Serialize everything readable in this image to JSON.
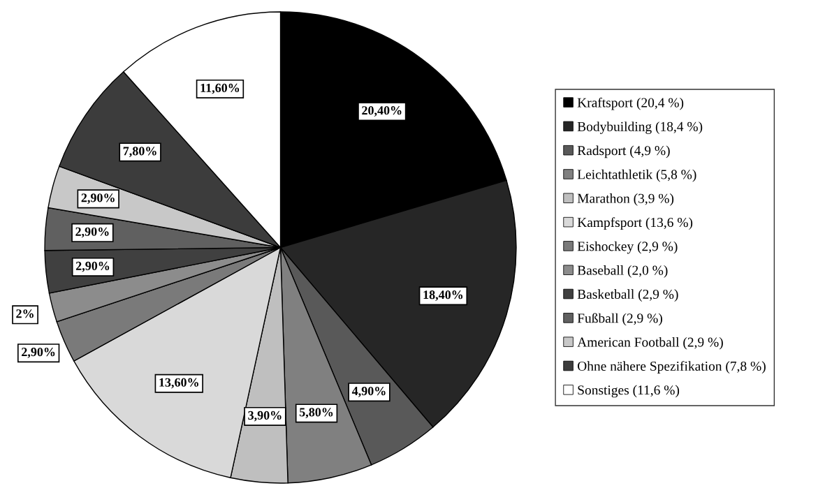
{
  "chart_data": {
    "type": "pie",
    "categories": [
      "Kraftsport (20,4 %)",
      "Bodybuilding (18,4 %)",
      "Radsport (4,9 %)",
      "Leichtathletik (5,8 %)",
      "Marathon (3,9 %)",
      "Kampfsport (13,6 %)",
      "Eishockey (2,9 %)",
      "Baseball (2,0 %)",
      "Basketball (2,9 %)",
      "Fußball (2,9 %)",
      "American Football (2,9 %)",
      "Ohne nähere Spezifikation (7,8 %)",
      "Sonstiges (11,6 %)"
    ],
    "values": [
      20.4,
      18.4,
      4.9,
      5.8,
      3.9,
      13.6,
      2.9,
      2.0,
      2.9,
      2.9,
      2.9,
      7.8,
      11.6
    ],
    "value_labels": [
      "20,40%",
      "18,40%",
      "4,90%",
      "5,80%",
      "3,90%",
      "13,60%",
      "2,90%",
      "2%",
      "2,90%",
      "2,90%",
      "2,90%",
      "7,80%",
      "11,60%"
    ],
    "colors": [
      "#000000",
      "#262626",
      "#595959",
      "#808080",
      "#bfbfbf",
      "#d9d9d9",
      "#7a7a7a",
      "#8c8c8c",
      "#404040",
      "#606060",
      "#c8c8c8",
      "#3c3c3c",
      "#ffffff"
    ],
    "legend": "right"
  }
}
